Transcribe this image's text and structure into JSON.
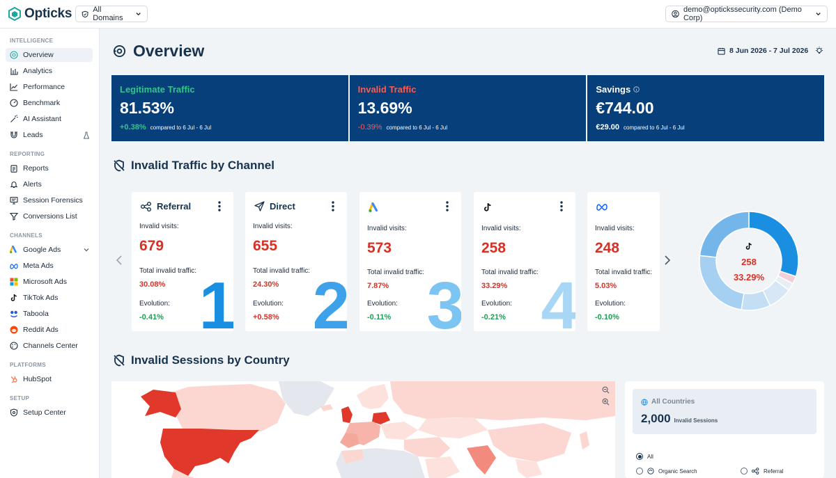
{
  "app": {
    "name": "Opticks",
    "domain_filter": "All Domains",
    "user": "demo@optickssecurity.com (Demo Corp)"
  },
  "sidebar": {
    "sections": [
      {
        "label": "INTELLIGENCE"
      },
      {
        "label": "REPORTING"
      },
      {
        "label": "CHANNELS"
      },
      {
        "label": "PLATFORMS"
      },
      {
        "label": "SETUP"
      }
    ],
    "items": [
      {
        "label": "Overview"
      },
      {
        "label": "Analytics"
      },
      {
        "label": "Performance"
      },
      {
        "label": "Benchmark"
      },
      {
        "label": "AI Assistant"
      },
      {
        "label": "Leads"
      },
      {
        "label": "Reports"
      },
      {
        "label": "Alerts"
      },
      {
        "label": "Session Forensics"
      },
      {
        "label": "Conversions List"
      },
      {
        "label": "Google Ads"
      },
      {
        "label": "Meta Ads"
      },
      {
        "label": "Microsoft Ads"
      },
      {
        "label": "TikTok Ads"
      },
      {
        "label": "Taboola"
      },
      {
        "label": "Reddit Ads"
      },
      {
        "label": "Channels Center"
      },
      {
        "label": "HubSpot"
      },
      {
        "label": "Setup Center"
      }
    ]
  },
  "page": {
    "title": "Overview",
    "date_range": "8 Jun 2026 - 7 Jul 2026"
  },
  "kpis": [
    {
      "label": "Legitimate Traffic",
      "value": "81.53%",
      "delta": "+0.38%",
      "compare": "compared to 6 Jul - 6 Jul",
      "label_color": "#35c48a",
      "delta_color": "#35c48a"
    },
    {
      "label": "Invalid Traffic",
      "value": "13.69%",
      "delta": "-0.39%",
      "compare": "compared to 6 Jul - 6 Jul",
      "label_color": "#ff5a4f",
      "delta_color": "#ff5a4f"
    },
    {
      "label": "Savings",
      "value": "€744.00",
      "delta": "€29.00",
      "compare": "compared to 6 Jul - 6 Jul",
      "label_color": "#ffffff",
      "delta_color": "#ffffff"
    }
  ],
  "channels_section": {
    "title": "Invalid Traffic by Channel"
  },
  "channels": [
    {
      "name": "Referral",
      "icon": "referral-icon",
      "visits_label": "Invalid visits:",
      "visits": "679",
      "total_label": "Total invalid traffic:",
      "total": "30.08%",
      "evo_label": "Evolution:",
      "evo": "-0.41%",
      "evo_color": "#1f9d55",
      "rank": "1",
      "rank_color": "#1a8ee0"
    },
    {
      "name": "Direct",
      "icon": "direct-icon",
      "visits_label": "Invalid visits:",
      "visits": "655",
      "total_label": "Total invalid traffic:",
      "total": "24.30%",
      "evo_label": "Evolution:",
      "evo": "+0.58%",
      "evo_color": "#d93025",
      "rank": "2",
      "rank_color": "#3da2ea"
    },
    {
      "name": "",
      "icon": "google-ads-icon",
      "visits_label": "Invalid visits:",
      "visits": "573",
      "total_label": "Total invalid traffic:",
      "total": "7.87%",
      "evo_label": "Evolution:",
      "evo": "-0.11%",
      "evo_color": "#1f9d55",
      "rank": "3",
      "rank_color": "#7cc4f2"
    },
    {
      "name": "",
      "icon": "tiktok-icon",
      "visits_label": "Invalid visits:",
      "visits": "258",
      "total_label": "Total invalid traffic:",
      "total": "33.29%",
      "evo_label": "Evolution:",
      "evo": "-0.21%",
      "evo_color": "#1f9d55",
      "rank": "4",
      "rank_color": "#a8d6f5"
    },
    {
      "name": "",
      "icon": "meta-icon",
      "visits_label": "Invalid visits:",
      "visits": "248",
      "total_label": "Total invalid traffic:",
      "total": "5.03%",
      "evo_label": "Evolution:",
      "evo": "-0.10%",
      "evo_color": "#1f9d55",
      "rank": "",
      "rank_color": "#ffffff"
    }
  ],
  "donut": {
    "center_value": "258",
    "center_pct": "33.29%",
    "icon": "tiktok-icon",
    "slices": [
      {
        "value": 30.08,
        "color": "#1a8ee0"
      },
      {
        "value": 2.5,
        "color": "#f3cfd8"
      },
      {
        "value": 2.5,
        "color": "#e9eef4"
      },
      {
        "value": 7.87,
        "color": "#d7e7f5"
      },
      {
        "value": 9.5,
        "color": "#c4dff4"
      },
      {
        "value": 24.3,
        "color": "#a6d0f2"
      },
      {
        "value": 23.25,
        "color": "#74b6ea"
      }
    ]
  },
  "sessions_section": {
    "title": "Invalid Sessions by Country"
  },
  "countries": {
    "all_label": "All Countries",
    "total": "2,000",
    "total_label": "Invalid Sessions",
    "filters": [
      {
        "label": "All",
        "checked": true
      },
      {
        "label": "Organic Search",
        "checked": false
      },
      {
        "label": "Referral",
        "checked": false
      }
    ]
  }
}
